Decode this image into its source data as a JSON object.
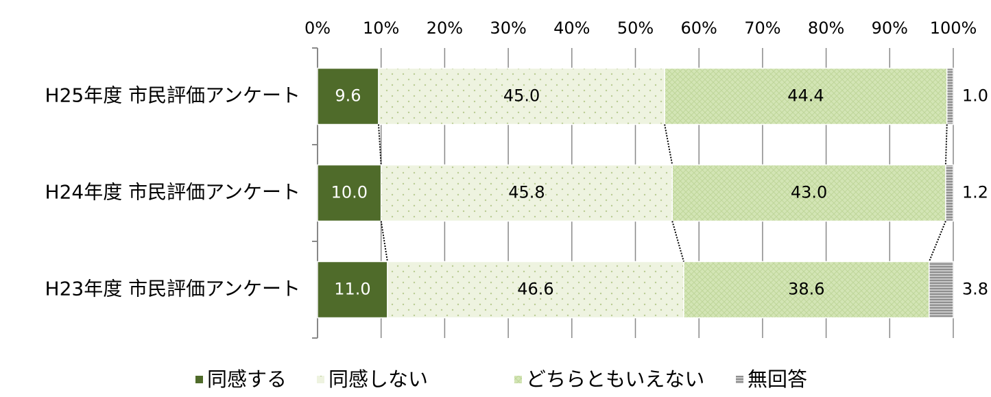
{
  "chart_data": {
    "type": "stacked-bar-horizontal",
    "categories": [
      "H25年度 市民評価アンケート",
      "H24年度 市民評価アンケート",
      "H23年度 市民評価アンケート"
    ],
    "series": [
      {
        "name": "同感する",
        "color": "#4f6b2a",
        "values": [
          9.6,
          10.0,
          11.0
        ],
        "value_labels": [
          "9.6",
          "10.0",
          "11.0"
        ]
      },
      {
        "name": "同感しない",
        "color": "#eef3e0",
        "values": [
          45.0,
          45.8,
          46.6
        ],
        "value_labels": [
          "45.0",
          "45.8",
          "46.6"
        ]
      },
      {
        "name": "どちらともいえない",
        "color": "#d3e5b5",
        "values": [
          44.4,
          43.0,
          38.6
        ],
        "value_labels": [
          "44.4",
          "43.0",
          "38.6"
        ]
      },
      {
        "name": "無回答",
        "color": "#a6a6a6",
        "values": [
          1.0,
          1.2,
          3.8
        ],
        "value_labels": [
          "1.0",
          "1.2",
          "3.8"
        ]
      }
    ],
    "xlim": [
      0,
      100
    ],
    "xticks": [
      {
        "value": 0,
        "label": "0%"
      },
      {
        "value": 10,
        "label": "10%"
      },
      {
        "value": 20,
        "label": "20%"
      },
      {
        "value": 30,
        "label": "30%"
      },
      {
        "value": 40,
        "label": "40%"
      },
      {
        "value": 50,
        "label": "50%"
      },
      {
        "value": 60,
        "label": "60%"
      },
      {
        "value": 70,
        "label": "70%"
      },
      {
        "value": 80,
        "label": "80%"
      },
      {
        "value": 90,
        "label": "90%"
      },
      {
        "value": 100,
        "label": "100%"
      }
    ],
    "grid": true,
    "legend": "bottom"
  }
}
